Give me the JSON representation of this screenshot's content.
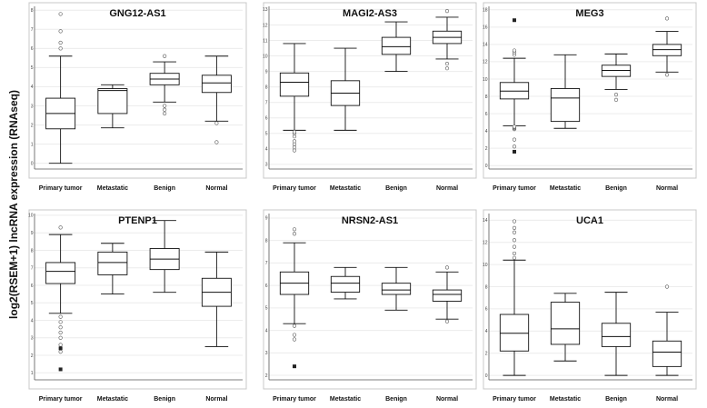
{
  "figure": {
    "ylabel": "log2(RSEM+1) lncRNA expression (RNAseq)"
  },
  "chart_data": [
    {
      "type": "boxplot",
      "title": "GNG12-AS1",
      "categories": [
        "Primary tumor",
        "Metastatic",
        "Benign",
        "Normal"
      ],
      "ylim": [
        -0.3,
        8.2
      ],
      "yticks": [
        0,
        1,
        2,
        3,
        4,
        5,
        6,
        7,
        8
      ],
      "boxes": [
        {
          "whisker_low": 0.0,
          "q1": 1.8,
          "median": 2.6,
          "q3": 3.4,
          "whisker_high": 5.6
        },
        {
          "whisker_low": 1.85,
          "q1": 2.6,
          "median": 3.8,
          "q3": 3.9,
          "whisker_high": 4.1
        },
        {
          "whisker_low": 3.2,
          "q1": 4.1,
          "median": 4.4,
          "q3": 4.7,
          "whisker_high": 5.3
        },
        {
          "whisker_low": 2.2,
          "q1": 3.7,
          "median": 4.2,
          "q3": 4.6,
          "whisker_high": 5.6
        }
      ],
      "outliers": [
        {
          "cat": 0,
          "value": 6.0
        },
        {
          "cat": 0,
          "value": 6.3
        },
        {
          "cat": 0,
          "value": 6.9
        },
        {
          "cat": 0,
          "value": 7.8
        },
        {
          "cat": 2,
          "value": 2.6
        },
        {
          "cat": 2,
          "value": 2.8
        },
        {
          "cat": 2,
          "value": 3.0
        },
        {
          "cat": 2,
          "value": 5.6
        },
        {
          "cat": 3,
          "value": 1.1
        },
        {
          "cat": 3,
          "value": 2.1
        }
      ],
      "extremes": []
    },
    {
      "type": "boxplot",
      "title": "MAGI2-AS3",
      "categories": [
        "Primary tumor",
        "Metastatic",
        "Benign",
        "Normal"
      ],
      "ylim": [
        2.7,
        13.2
      ],
      "yticks": [
        3,
        4,
        5,
        6,
        7,
        8,
        9,
        10,
        11,
        12,
        13
      ],
      "boxes": [
        {
          "whisker_low": 5.2,
          "q1": 7.4,
          "median": 8.3,
          "q3": 8.9,
          "whisker_high": 10.8
        },
        {
          "whisker_low": 5.2,
          "q1": 6.8,
          "median": 7.6,
          "q3": 8.4,
          "whisker_high": 10.5
        },
        {
          "whisker_low": 9.0,
          "q1": 10.1,
          "median": 10.6,
          "q3": 11.2,
          "whisker_high": 12.2
        },
        {
          "whisker_low": 9.8,
          "q1": 10.8,
          "median": 11.2,
          "q3": 11.6,
          "whisker_high": 12.5
        }
      ],
      "outliers": [
        {
          "cat": 0,
          "value": 3.9
        },
        {
          "cat": 0,
          "value": 4.1
        },
        {
          "cat": 0,
          "value": 4.3
        },
        {
          "cat": 0,
          "value": 4.5
        },
        {
          "cat": 0,
          "value": 4.8
        },
        {
          "cat": 0,
          "value": 5.0
        },
        {
          "cat": 0,
          "value": 5.1
        },
        {
          "cat": 3,
          "value": 9.2
        },
        {
          "cat": 3,
          "value": 9.5
        },
        {
          "cat": 3,
          "value": 12.9
        }
      ],
      "extremes": []
    },
    {
      "type": "boxplot",
      "title": "MEG3",
      "categories": [
        "Primary tumor",
        "Metastatic",
        "Benign",
        "Normal"
      ],
      "ylim": [
        -0.4,
        18.4
      ],
      "yticks": [
        0,
        2,
        4,
        6,
        8,
        10,
        12,
        14,
        16,
        18
      ],
      "boxes": [
        {
          "whisker_low": 4.6,
          "q1": 7.7,
          "median": 8.6,
          "q3": 9.6,
          "whisker_high": 12.4
        },
        {
          "whisker_low": 4.3,
          "q1": 5.1,
          "median": 7.8,
          "q3": 8.9,
          "whisker_high": 12.8
        },
        {
          "whisker_low": 8.8,
          "q1": 10.3,
          "median": 11.0,
          "q3": 11.6,
          "whisker_high": 12.9
        },
        {
          "whisker_low": 10.8,
          "q1": 12.7,
          "median": 13.4,
          "q3": 14.0,
          "whisker_high": 15.5
        }
      ],
      "outliers": [
        {
          "cat": 0,
          "value": 2.2
        },
        {
          "cat": 0,
          "value": 3.0
        },
        {
          "cat": 0,
          "value": 4.2
        },
        {
          "cat": 0,
          "value": 4.3
        },
        {
          "cat": 0,
          "value": 4.4
        },
        {
          "cat": 0,
          "value": 4.5
        },
        {
          "cat": 0,
          "value": 12.8
        },
        {
          "cat": 0,
          "value": 13.1
        },
        {
          "cat": 0,
          "value": 13.3
        },
        {
          "cat": 2,
          "value": 7.6
        },
        {
          "cat": 2,
          "value": 8.2
        },
        {
          "cat": 3,
          "value": 10.5
        },
        {
          "cat": 3,
          "value": 17.0
        }
      ],
      "extremes": [
        {
          "cat": 0,
          "value": 1.6
        },
        {
          "cat": 0,
          "value": 16.8
        }
      ]
    },
    {
      "type": "boxplot",
      "title": "PTENP1",
      "categories": [
        "Primary tumor",
        "Metastatic",
        "Benign",
        "Normal"
      ],
      "ylim": [
        0.6,
        10.1
      ],
      "yticks": [
        1,
        2,
        3,
        4,
        5,
        6,
        7,
        8,
        9,
        10
      ],
      "boxes": [
        {
          "whisker_low": 4.4,
          "q1": 6.1,
          "median": 6.8,
          "q3": 7.3,
          "whisker_high": 8.9
        },
        {
          "whisker_low": 5.5,
          "q1": 6.6,
          "median": 7.3,
          "q3": 7.9,
          "whisker_high": 8.4
        },
        {
          "whisker_low": 5.6,
          "q1": 6.9,
          "median": 7.5,
          "q3": 8.1,
          "whisker_high": 9.7
        },
        {
          "whisker_low": 2.5,
          "q1": 4.8,
          "median": 5.6,
          "q3": 6.4,
          "whisker_high": 7.9
        }
      ],
      "outliers": [
        {
          "cat": 0,
          "value": 2.2
        },
        {
          "cat": 0,
          "value": 2.6
        },
        {
          "cat": 0,
          "value": 3.0
        },
        {
          "cat": 0,
          "value": 3.3
        },
        {
          "cat": 0,
          "value": 3.6
        },
        {
          "cat": 0,
          "value": 3.9
        },
        {
          "cat": 0,
          "value": 4.2
        },
        {
          "cat": 0,
          "value": 9.3
        }
      ],
      "extremes": [
        {
          "cat": 0,
          "value": 1.2
        },
        {
          "cat": 0,
          "value": 2.4
        }
      ]
    },
    {
      "type": "boxplot",
      "title": "NRSN2-AS1",
      "categories": [
        "Primary tumor",
        "Metastatic",
        "Benign",
        "Normal"
      ],
      "ylim": [
        1.8,
        9.2
      ],
      "yticks": [
        2,
        3,
        4,
        5,
        6,
        7,
        8,
        9
      ],
      "boxes": [
        {
          "whisker_low": 4.3,
          "q1": 5.6,
          "median": 6.1,
          "q3": 6.6,
          "whisker_high": 7.9
        },
        {
          "whisker_low": 5.4,
          "q1": 5.7,
          "median": 6.1,
          "q3": 6.4,
          "whisker_high": 6.8
        },
        {
          "whisker_low": 4.9,
          "q1": 5.6,
          "median": 5.8,
          "q3": 6.1,
          "whisker_high": 6.8
        },
        {
          "whisker_low": 4.5,
          "q1": 5.3,
          "median": 5.6,
          "q3": 5.8,
          "whisker_high": 6.6
        }
      ],
      "outliers": [
        {
          "cat": 0,
          "value": 3.6
        },
        {
          "cat": 0,
          "value": 3.8
        },
        {
          "cat": 0,
          "value": 4.2
        },
        {
          "cat": 0,
          "value": 8.3
        },
        {
          "cat": 0,
          "value": 8.5
        },
        {
          "cat": 3,
          "value": 4.4
        },
        {
          "cat": 3,
          "value": 6.8
        }
      ],
      "extremes": [
        {
          "cat": 0,
          "value": 2.4
        }
      ]
    },
    {
      "type": "boxplot",
      "title": "UCA1",
      "categories": [
        "Primary tumor",
        "Metastatic",
        "Benign",
        "Normal"
      ],
      "ylim": [
        -0.4,
        14.6
      ],
      "yticks": [
        0,
        2,
        4,
        6,
        8,
        10,
        12,
        14
      ],
      "boxes": [
        {
          "whisker_low": 0.0,
          "q1": 2.2,
          "median": 3.8,
          "q3": 5.5,
          "whisker_high": 10.4
        },
        {
          "whisker_low": 1.3,
          "q1": 2.8,
          "median": 4.2,
          "q3": 6.6,
          "whisker_high": 7.4
        },
        {
          "whisker_low": 0.0,
          "q1": 2.6,
          "median": 3.5,
          "q3": 4.7,
          "whisker_high": 7.5
        },
        {
          "whisker_low": 0.0,
          "q1": 0.8,
          "median": 2.1,
          "q3": 3.1,
          "whisker_high": 5.7
        }
      ],
      "outliers": [
        {
          "cat": 0,
          "value": 10.6
        },
        {
          "cat": 0,
          "value": 11.0
        },
        {
          "cat": 0,
          "value": 11.6
        },
        {
          "cat": 0,
          "value": 12.2
        },
        {
          "cat": 0,
          "value": 12.9
        },
        {
          "cat": 0,
          "value": 13.3
        },
        {
          "cat": 0,
          "value": 13.9
        },
        {
          "cat": 3,
          "value": 8.0
        }
      ],
      "extremes": []
    }
  ]
}
